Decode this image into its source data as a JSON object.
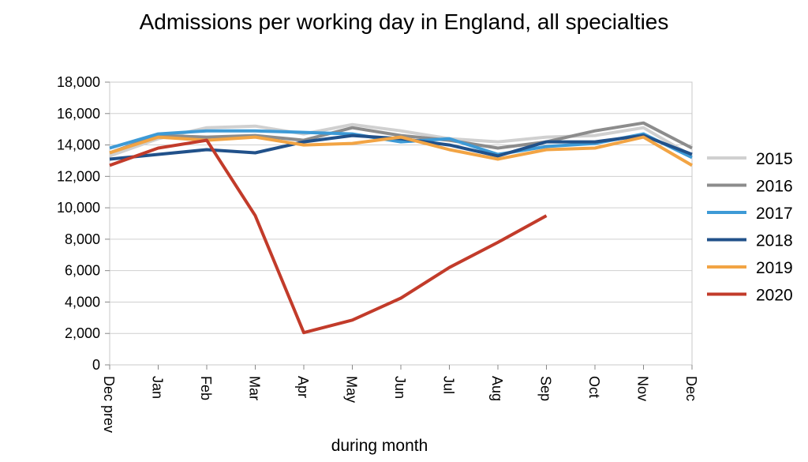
{
  "chart_data": {
    "type": "line",
    "title": "Admissions per working day in England, all specialties",
    "xlabel": "during  month",
    "ylabel": "",
    "ylim": [
      0,
      18000
    ],
    "yticks": [
      0,
      2000,
      4000,
      6000,
      8000,
      10000,
      12000,
      14000,
      16000,
      18000
    ],
    "ytick_labels": [
      "0",
      "2,000",
      "4,000",
      "6,000",
      "8,000",
      "10,000",
      "12,000",
      "14,000",
      "16,000",
      "18,000"
    ],
    "categories": [
      "Dec prev",
      "Jan",
      "Feb",
      "Mar",
      "Apr",
      "May",
      "Jun",
      "Jul",
      "Aug",
      "Sep",
      "Oct",
      "Nov",
      "Dec"
    ],
    "grid": "horizontal",
    "legend_position": "right",
    "series": [
      {
        "name": "2015",
        "color": "#d0d0d0",
        "values": [
          13300,
          14400,
          15100,
          15200,
          14700,
          15300,
          14900,
          14400,
          14200,
          14500,
          14600,
          15100,
          13300
        ]
      },
      {
        "name": "2016",
        "color": "#8c8c8c",
        "values": [
          13500,
          14600,
          14500,
          14600,
          14300,
          15100,
          14600,
          14300,
          13800,
          14200,
          14900,
          15400,
          13800
        ]
      },
      {
        "name": "2017",
        "color": "#3d9ad6",
        "values": [
          13800,
          14700,
          14900,
          14900,
          14800,
          14700,
          14200,
          14400,
          13400,
          13900,
          14100,
          14700,
          13200
        ]
      },
      {
        "name": "2018",
        "color": "#21518a",
        "values": [
          13100,
          13400,
          13700,
          13500,
          14200,
          14600,
          14400,
          14000,
          13300,
          14200,
          14200,
          14600,
          13400
        ]
      },
      {
        "name": "2019",
        "color": "#f2a444",
        "values": [
          13500,
          14500,
          14300,
          14500,
          14000,
          14100,
          14500,
          13700,
          13100,
          13700,
          13800,
          14500,
          12700
        ]
      },
      {
        "name": "2020",
        "color": "#c23b2a",
        "values": [
          12700,
          13800,
          14300,
          9500,
          2050,
          2850,
          4250,
          6200,
          7800,
          9500,
          null,
          null,
          null
        ]
      }
    ]
  }
}
